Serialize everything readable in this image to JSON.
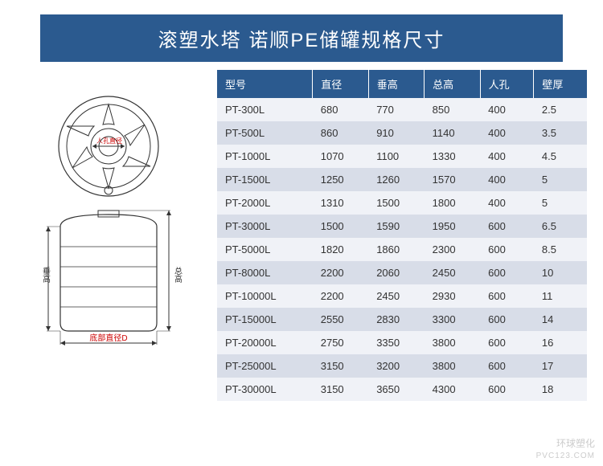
{
  "title": "滚塑水塔 诺顺PE储罐规格尺寸",
  "table": {
    "columns": [
      "型号",
      "直径",
      "垂高",
      "总高",
      "人孔",
      "壁厚"
    ],
    "rows": [
      [
        "PT-300L",
        "680",
        "770",
        "850",
        "400",
        "2.5"
      ],
      [
        "PT-500L",
        "860",
        "910",
        "1140",
        "400",
        "3.5"
      ],
      [
        "PT-1000L",
        "1070",
        "1100",
        "1330",
        "400",
        "4.5"
      ],
      [
        "PT-1500L",
        "1250",
        "1260",
        "1570",
        "400",
        "5"
      ],
      [
        "PT-2000L",
        "1310",
        "1500",
        "1800",
        "400",
        "5"
      ],
      [
        "PT-3000L",
        "1500",
        "1590",
        "1950",
        "600",
        "6.5"
      ],
      [
        "PT-5000L",
        "1820",
        "1860",
        "2300",
        "600",
        "8.5"
      ],
      [
        "PT-8000L",
        "2200",
        "2060",
        "2450",
        "600",
        "10"
      ],
      [
        "PT-10000L",
        "2200",
        "2450",
        "2930",
        "600",
        "11"
      ],
      [
        "PT-15000L",
        "2550",
        "2830",
        "3300",
        "600",
        "14"
      ],
      [
        "PT-20000L",
        "2750",
        "3350",
        "3800",
        "600",
        "16"
      ],
      [
        "PT-25000L",
        "3150",
        "3200",
        "3800",
        "600",
        "17"
      ],
      [
        "PT-30000L",
        "3150",
        "3650",
        "4300",
        "600",
        "18"
      ]
    ],
    "header_bg": "#2b5a8f",
    "header_color": "#ffffff",
    "row_odd_bg": "#f0f2f7",
    "row_even_bg": "#d8dde8",
    "fontsize": 13
  },
  "diagram": {
    "labels": {
      "manhole": "人孔直径",
      "vertical_height": "垂高",
      "total_height": "总高",
      "bottom_diameter": "底部直径D"
    },
    "line_color": "#333333",
    "arrow_color": "#333333",
    "text_color": "#333333",
    "stroke_width": 1.2
  },
  "colors": {
    "title_bg": "#2b5a8f",
    "title_text": "#ffffff",
    "page_bg": "#ffffff"
  },
  "watermark": {
    "brand": "环球塑化",
    "domain": "PVC123.COM"
  }
}
